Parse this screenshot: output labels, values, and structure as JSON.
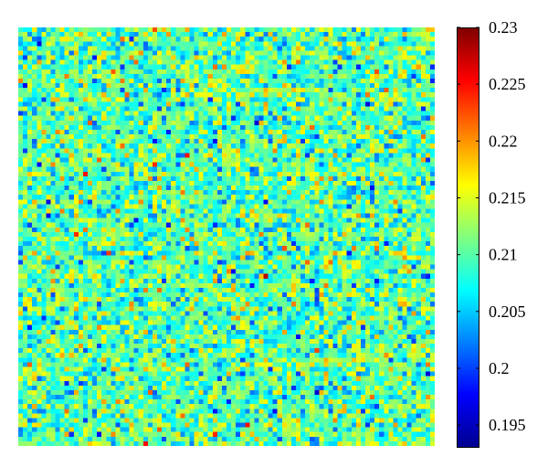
{
  "chart_data": {
    "type": "heatmap",
    "title": "",
    "xlabel": "",
    "ylabel": "",
    "grid": false,
    "matrix_size": [
      90,
      90
    ],
    "value_range": [
      0.193,
      0.23
    ],
    "value_distribution": "random noise, mostly 0.205–0.215, occasional extremes",
    "colormap": "jet",
    "colormap_stops": [
      "#00008f",
      "#0000ff",
      "#00ffff",
      "#ffff00",
      "#ff0000",
      "#800000"
    ],
    "colorbar": {
      "placement": "right",
      "ticks": [
        {
          "value": 0.195,
          "label": "0.195"
        },
        {
          "value": 0.2,
          "label": "0.2"
        },
        {
          "value": 0.205,
          "label": "0.205"
        },
        {
          "value": 0.21,
          "label": "0.21"
        },
        {
          "value": 0.215,
          "label": "0.215"
        },
        {
          "value": 0.22,
          "label": "0.22"
        },
        {
          "value": 0.225,
          "label": "0.225"
        },
        {
          "value": 0.23,
          "label": "0.23"
        }
      ]
    }
  }
}
